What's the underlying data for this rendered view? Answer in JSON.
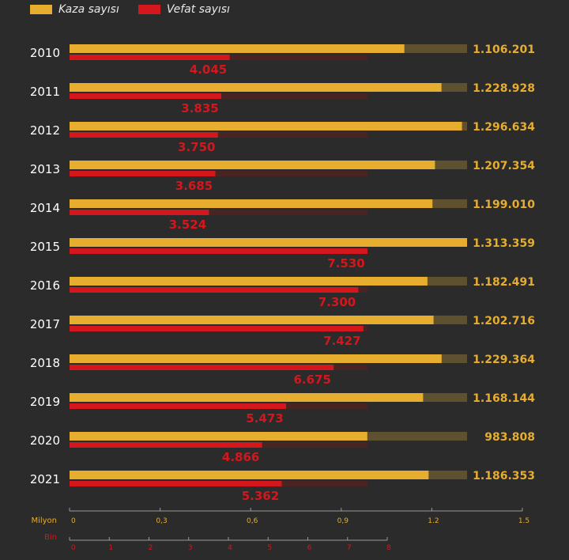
{
  "legend": {
    "kaza_label": "Kaza sayısı",
    "vefat_label": "Vefat sayısı"
  },
  "colors": {
    "background": "#2b2b2b",
    "kaza": "#e6ad2e",
    "kaza_track": "#5e5130",
    "vefat": "#d3171d",
    "vefat_track": "#4a2422",
    "year_text": "#ffffff",
    "axis": "#9a9a9a"
  },
  "chart_data": {
    "type": "bar",
    "categories": [
      "2010",
      "2011",
      "2012",
      "2013",
      "2014",
      "2015",
      "2016",
      "2017",
      "2018",
      "2019",
      "2020",
      "2021"
    ],
    "series": [
      {
        "name": "Kaza sayısı",
        "values": [
          1106201,
          1228928,
          1296634,
          1207354,
          1199010,
          1313359,
          1182491,
          1202716,
          1229364,
          1168144,
          983808,
          1186353
        ],
        "labels": [
          "1.106.201",
          "1.228.928",
          "1.296.634",
          "1.207.354",
          "1.199.010",
          "1.313.359",
          "1.182.491",
          "1.202.716",
          "1.229.364",
          "1.168.144",
          "983.808",
          "1.186.353"
        ],
        "max": 1313359
      },
      {
        "name": "Vefat sayısı",
        "values": [
          4045,
          3835,
          3750,
          3685,
          3524,
          7530,
          7300,
          7427,
          6675,
          5473,
          4866,
          5362
        ],
        "labels": [
          "4.045",
          "3.835",
          "3.750",
          "3.685",
          "3.524",
          "7.530",
          "7.300",
          "7.427",
          "6.675",
          "5.473",
          "4.866",
          "5.362"
        ],
        "max": 7530
      }
    ],
    "axes": {
      "milyon": {
        "label": "Milyon",
        "range": [
          0,
          1.5
        ],
        "ticks": [
          0,
          0.3,
          0.6,
          0.9,
          1.2,
          1.5
        ],
        "tick_labels": [
          "0",
          "0,3",
          "0,6",
          "0,9",
          "1.2",
          "1.5"
        ]
      },
      "bin": {
        "label": "Bin",
        "range": [
          0,
          8
        ],
        "ticks": [
          0,
          1,
          2,
          3,
          4,
          5,
          6,
          7,
          8
        ],
        "tick_labels": [
          "0",
          "1",
          "2",
          "3",
          "4",
          "5",
          "6",
          "7",
          "8"
        ]
      }
    }
  }
}
